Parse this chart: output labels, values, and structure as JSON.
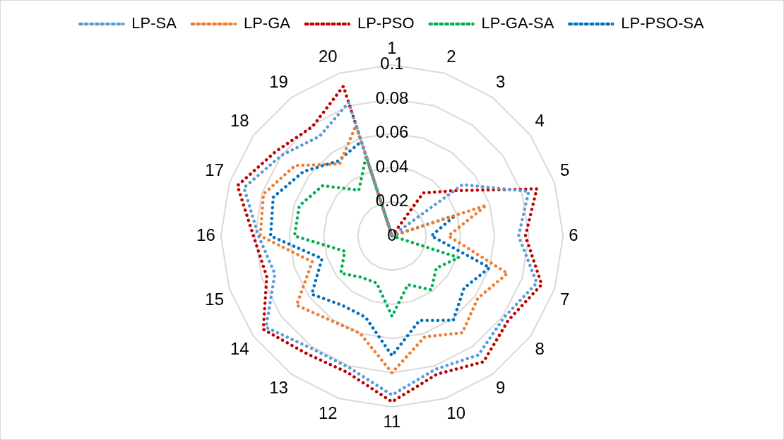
{
  "chart_data": {
    "type": "radar",
    "categories": [
      "1",
      "2",
      "3",
      "4",
      "5",
      "6",
      "7",
      "8",
      "9",
      "10",
      "11",
      "12",
      "13",
      "14",
      "15",
      "16",
      "17",
      "18",
      "19",
      "20"
    ],
    "series": [
      {
        "name": "LP-SA",
        "color": "#5b9bd5",
        "values": [
          0,
          0,
          0,
          0.051,
          0.084,
          0.074,
          0.089,
          0.081,
          0.086,
          0.082,
          0.093,
          0.081,
          0.081,
          0.091,
          0.072,
          0.078,
          0.091,
          0.08,
          0.072,
          0.082
        ]
      },
      {
        "name": "LP-GA",
        "color": "#ed7d31",
        "values": [
          0,
          0,
          0,
          0,
          0.058,
          0.033,
          0.071,
          0.062,
          0.07,
          0.062,
          0.08,
          0.06,
          0.061,
          0.069,
          0.049,
          0.077,
          0.079,
          0.07,
          0.052,
          0.068
        ]
      },
      {
        "name": "LP-PSO",
        "color": "#c00000",
        "values": [
          0,
          0,
          0.031,
          0.045,
          0.089,
          0.078,
          0.092,
          0.084,
          0.091,
          0.085,
          0.097,
          0.084,
          0.085,
          0.093,
          0.077,
          0.081,
          0.095,
          0.084,
          0.079,
          0.092
        ]
      },
      {
        "name": "LP-GA-SA",
        "color": "#00b050",
        "values": [
          0,
          0,
          0,
          0,
          0,
          0,
          0.041,
          0.032,
          0.039,
          0.03,
          0.047,
          0.029,
          0.03,
          0.037,
          0.029,
          0.057,
          0.057,
          0.05,
          0.033,
          0.049
        ]
      },
      {
        "name": "LP-PSO-SA",
        "color": "#0070c0",
        "values": [
          0,
          0,
          0,
          0,
          0.039,
          0.023,
          0.06,
          0.052,
          0.061,
          0.052,
          0.07,
          0.05,
          0.05,
          0.058,
          0.043,
          0.071,
          0.073,
          0.064,
          0.054,
          0.058
        ]
      }
    ],
    "ylim": [
      0,
      0.1
    ],
    "yticks": [
      0,
      0.02,
      0.04,
      0.06,
      0.08,
      0.1
    ],
    "grid": true,
    "legend": "top",
    "line_style": "dotted",
    "marker": "none"
  }
}
